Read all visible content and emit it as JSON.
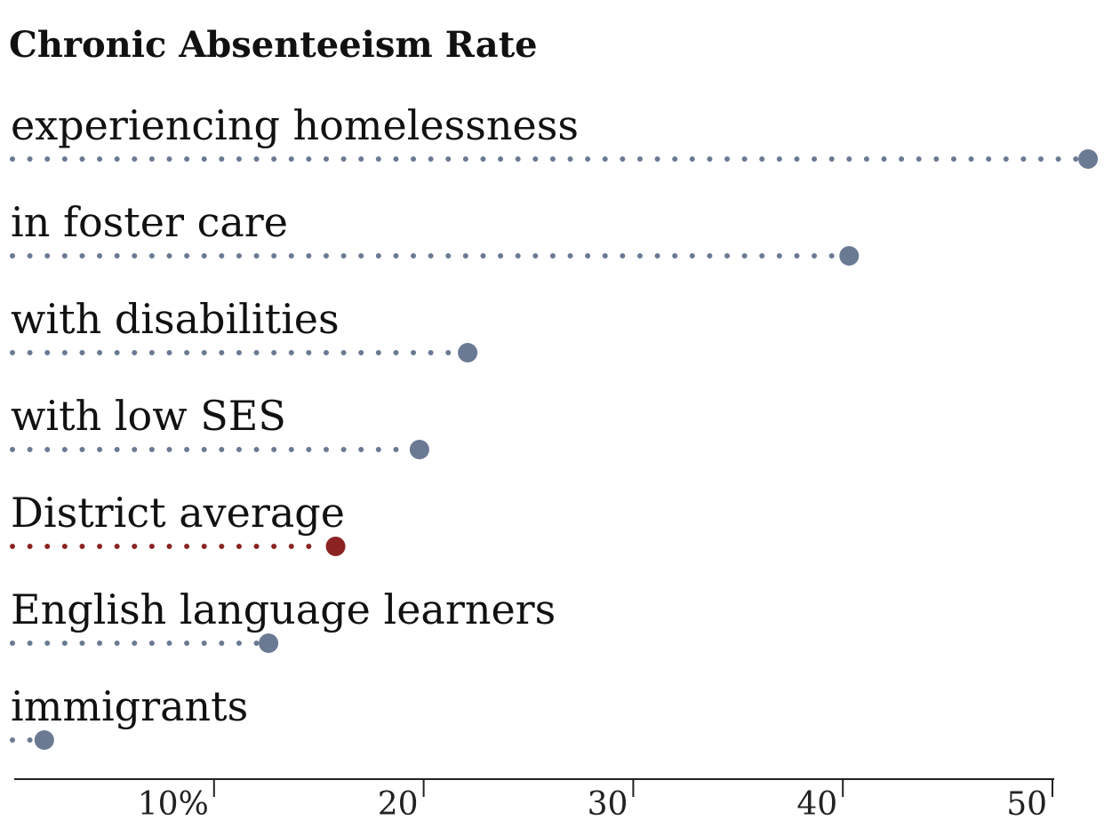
{
  "chart_data": {
    "type": "dot",
    "title": "Chronic Absenteeism Rate",
    "categories": [
      "experiencing homelessness",
      "in foster care",
      "with disabilities",
      "with low SES",
      "District average",
      "English language learners",
      "immigrants"
    ],
    "values": [
      51.7,
      40.3,
      22.1,
      19.8,
      15.8,
      12.6,
      1.9
    ],
    "highlight": "District average",
    "xlim": [
      0,
      52
    ],
    "xticks": [
      10,
      20,
      30,
      40,
      50
    ],
    "xtick_labels": [
      "10%",
      "20",
      "30",
      "40",
      "50"
    ],
    "grid": false,
    "colors": {
      "default": "#6b7a93",
      "highlight": "#8b2323",
      "axis": "#222222"
    }
  }
}
